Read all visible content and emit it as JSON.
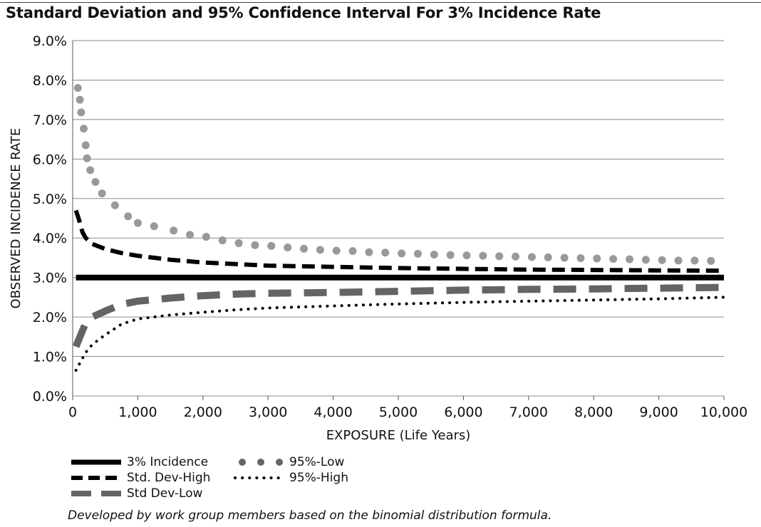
{
  "chart_data": {
    "type": "line",
    "title": "Standard Deviation and 95% Confidence Interval For 3% Incidence Rate",
    "xlabel": "EXPOSURE (Life Years)",
    "ylabel": "OBSERVED INCIDENCE RATE",
    "xlim": [
      0,
      10000
    ],
    "ylim": [
      0,
      9
    ],
    "x_ticks": [
      "0",
      "1,000",
      "2,000",
      "3,000",
      "4,000",
      "5,000",
      "6,000",
      "7,000",
      "8,000",
      "9,000",
      "10,000"
    ],
    "y_ticks": [
      "0.0%",
      "1.0%",
      "2.0%",
      "3.0%",
      "4.0%",
      "5.0%",
      "6.0%",
      "7.0%",
      "8.0%",
      "9.0%"
    ],
    "grid": "horizontal",
    "legend_position": "bottom-left",
    "series": [
      {
        "name": "3% Incidence",
        "color": "#000000",
        "style": "solid",
        "x": [
          50,
          10000
        ],
        "y": [
          3.0,
          3.0
        ]
      },
      {
        "name": "Std. Dev-High",
        "color": "#000000",
        "style": "dashed",
        "x": [
          50,
          100,
          150,
          200,
          300,
          500,
          750,
          1000,
          1500,
          2000,
          2500,
          3000,
          4000,
          5000,
          6000,
          7000,
          8000,
          9000,
          10000
        ],
        "y": [
          4.7,
          4.45,
          4.15,
          4.0,
          3.85,
          3.72,
          3.62,
          3.55,
          3.45,
          3.38,
          3.34,
          3.3,
          3.27,
          3.24,
          3.22,
          3.2,
          3.19,
          3.18,
          3.17
        ]
      },
      {
        "name": "Std Dev-Low",
        "color": "#646464",
        "style": "longdash",
        "x": [
          50,
          100,
          150,
          200,
          300,
          500,
          750,
          1000,
          1500,
          2000,
          2500,
          3000,
          4000,
          5000,
          6000,
          7000,
          8000,
          9000,
          10000
        ],
        "y": [
          1.25,
          1.45,
          1.65,
          1.85,
          2.0,
          2.15,
          2.32,
          2.4,
          2.48,
          2.54,
          2.58,
          2.6,
          2.62,
          2.65,
          2.68,
          2.7,
          2.71,
          2.73,
          2.75
        ]
      },
      {
        "name": "95%-Low",
        "color": "#999999",
        "style": "bigdots",
        "x": [
          80,
          110,
          130,
          170,
          200,
          220,
          270,
          350,
          450,
          650,
          850,
          1000,
          1250,
          1550,
          1800,
          2050,
          2300,
          2550,
          2800,
          3050,
          3300,
          3550,
          3800,
          4050,
          4300,
          4550,
          4800,
          5050,
          5300,
          5550,
          5800,
          6050,
          6300,
          6550,
          6800,
          7050,
          7300,
          7550,
          7800,
          8050,
          8300,
          8550,
          8800,
          9050,
          9300,
          9550,
          9800
        ],
        "y": [
          7.8,
          7.5,
          7.18,
          6.77,
          6.35,
          6.02,
          5.72,
          5.42,
          5.13,
          4.83,
          4.55,
          4.38,
          4.3,
          4.19,
          4.08,
          4.03,
          3.94,
          3.87,
          3.82,
          3.8,
          3.76,
          3.73,
          3.7,
          3.68,
          3.67,
          3.64,
          3.63,
          3.61,
          3.6,
          3.58,
          3.57,
          3.56,
          3.55,
          3.54,
          3.53,
          3.52,
          3.51,
          3.5,
          3.49,
          3.48,
          3.47,
          3.46,
          3.45,
          3.44,
          3.43,
          3.43,
          3.42
        ]
      },
      {
        "name": "95%-High",
        "color": "#000000",
        "style": "smalldots",
        "x": [
          50,
          100,
          150,
          200,
          300,
          500,
          750,
          1000,
          1500,
          2000,
          2500,
          3000,
          4000,
          5000,
          6000,
          7000,
          8000,
          9000,
          10000
        ],
        "y": [
          0.65,
          0.8,
          0.95,
          1.1,
          1.3,
          1.55,
          1.82,
          1.95,
          2.05,
          2.12,
          2.18,
          2.23,
          2.28,
          2.33,
          2.37,
          2.4,
          2.43,
          2.46,
          2.5
        ]
      }
    ],
    "note": "Developed by work group members based on the binomial distribution formula."
  }
}
